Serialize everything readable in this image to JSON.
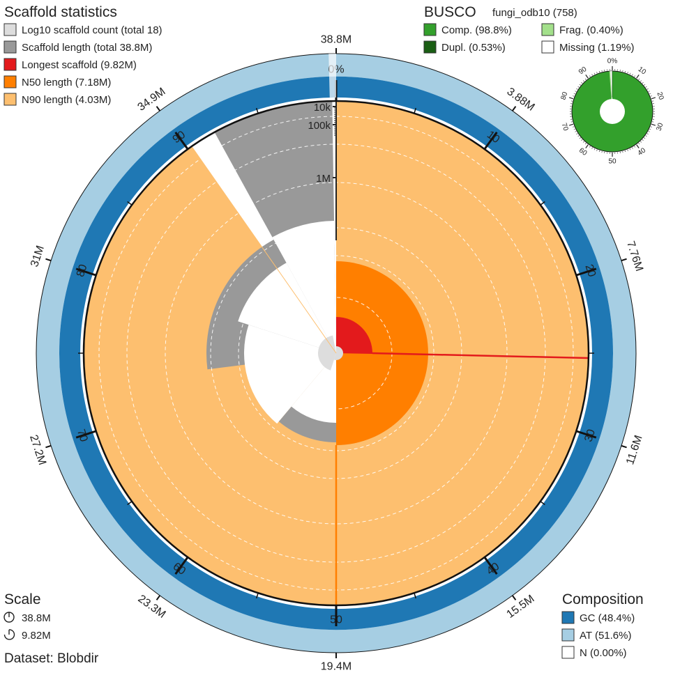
{
  "chart_data": {
    "type": "snail",
    "scaffold_stats": {
      "title": "Scaffold statistics",
      "legend": [
        {
          "label": "Log10 scaffold count (total 18)",
          "color": "#dddddd"
        },
        {
          "label": "Scaffold length (total 38.8M)",
          "color": "#999999"
        },
        {
          "label": "Longest scaffold (9.82M)",
          "color": "#e31a1c"
        },
        {
          "label": "N50 length (7.18M)",
          "color": "#ff7f00"
        },
        {
          "label": "N90 length (4.03M)",
          "color": "#fdbf6f"
        }
      ],
      "total_length": 38.8,
      "longest_scaffold": 9.82,
      "n50_length": 7.18,
      "n90_length": 4.03,
      "n50_percent": 50,
      "n90_percent": 90.3,
      "radial_scale_labels": [
        "10k",
        "100k",
        "1M"
      ]
    },
    "circumference_labels": [
      {
        "label": "38.8M",
        "percent": 0
      },
      {
        "label": "3.88M",
        "percent": 10
      },
      {
        "label": "7.76M",
        "percent": 20
      },
      {
        "label": "11.6M",
        "percent": 30
      },
      {
        "label": "15.5M",
        "percent": 40
      },
      {
        "label": "19.4M",
        "percent": 50
      },
      {
        "label": "23.3M",
        "percent": 60
      },
      {
        "label": "27.2M",
        "percent": 70
      },
      {
        "label": "31M",
        "percent": 80
      },
      {
        "label": "34.9M",
        "percent": 90
      }
    ],
    "percent_ticks": [
      "0%",
      "10",
      "20",
      "30",
      "40",
      "50",
      "60",
      "70",
      "80",
      "90"
    ],
    "busco": {
      "title": "BUSCO",
      "lineage": "fungi_odb10 (758)",
      "legend": [
        {
          "label": "Comp. (98.8%)",
          "color": "#33a02c"
        },
        {
          "label": "Dupl. (0.53%)",
          "color": "#1a5e14"
        },
        {
          "label": "Frag. (0.40%)",
          "color": "#a3e08b"
        },
        {
          "label": "Missing (1.19%)",
          "color": "#ffffff"
        }
      ],
      "complete": 98.8,
      "duplicated": 0.53,
      "fragmented": 0.4,
      "missing": 1.19,
      "ring_labels": [
        "0%",
        "10",
        "20",
        "30",
        "40",
        "50",
        "60",
        "70",
        "80",
        "90"
      ]
    },
    "composition": {
      "title": "Composition",
      "legend": [
        {
          "label": "GC (48.4%)",
          "color": "#1f78b4"
        },
        {
          "label": "AT (51.6%)",
          "color": "#a6cee3"
        },
        {
          "label": "N (0.00%)",
          "color": "#ffffff"
        }
      ],
      "gc": 48.4,
      "at": 51.6,
      "n": 0.0
    },
    "scale": {
      "title": "Scale",
      "items": [
        "38.8M",
        "9.82M"
      ]
    },
    "dataset": "Dataset: Blobdir"
  }
}
